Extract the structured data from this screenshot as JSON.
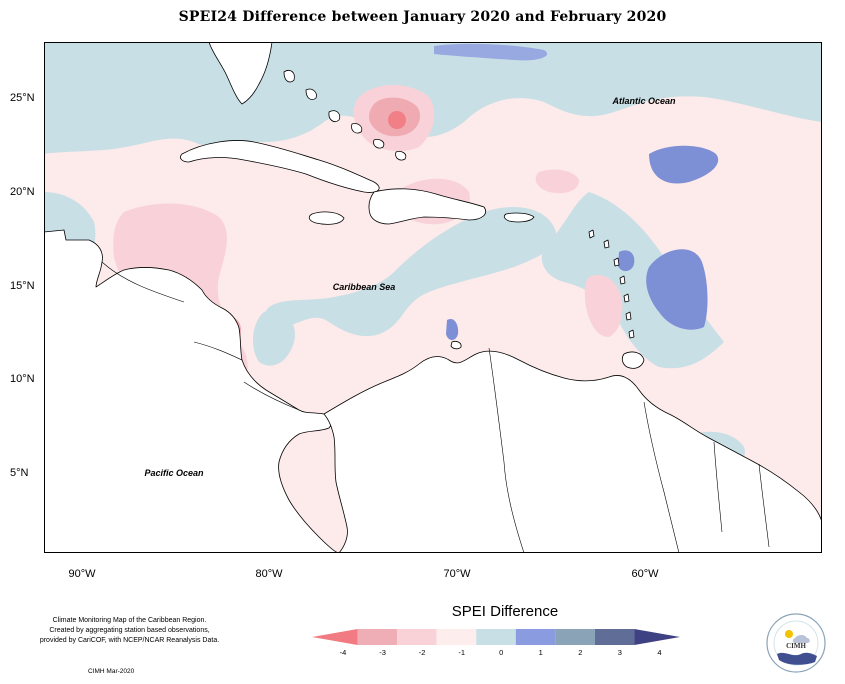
{
  "title": "SPEI24 Difference between January 2020 and February 2020",
  "map": {
    "lat_labels": [
      "25°N",
      "20°N",
      "15°N",
      "10°N",
      "5°N"
    ],
    "lon_labels": [
      "90°W",
      "80°W",
      "70°W",
      "60°W"
    ],
    "places": {
      "atlantic": "Atlantic Ocean",
      "caribbean": "Caribbean Sea",
      "pacific": "Pacific Ocean"
    },
    "colors": {
      "ocean_blue": "#c9dfe6",
      "light_pink": "#fdeaea",
      "pink": "#f8d2d8",
      "rose": "#efaab2",
      "red": "#f07f86",
      "blue": "#98a8e0",
      "blue_mid": "#7d8fd5",
      "land": "#ffffff"
    }
  },
  "legend": {
    "title": "SPEI Difference",
    "labels": [
      "-4",
      "-3",
      "-2",
      "-1",
      "0",
      "1",
      "2",
      "3",
      "4"
    ],
    "colors": [
      "#f27a82",
      "#efaeb5",
      "#f9d2d8",
      "#fdeded",
      "#c9dfe6",
      "#8a9bdf",
      "#8aa3b7",
      "#5f6d97",
      "#3f4282"
    ]
  },
  "footnote": {
    "line1": "Climate Monitoring Map of the Caribbean Region.",
    "line2": "Created by aggregating station based observations,",
    "line3": "provided by CariCOF, with NCEP/NCAR Reanalysis Data."
  },
  "credit": "CIMH Mar-2020",
  "logo": {
    "name": "CIMH"
  }
}
